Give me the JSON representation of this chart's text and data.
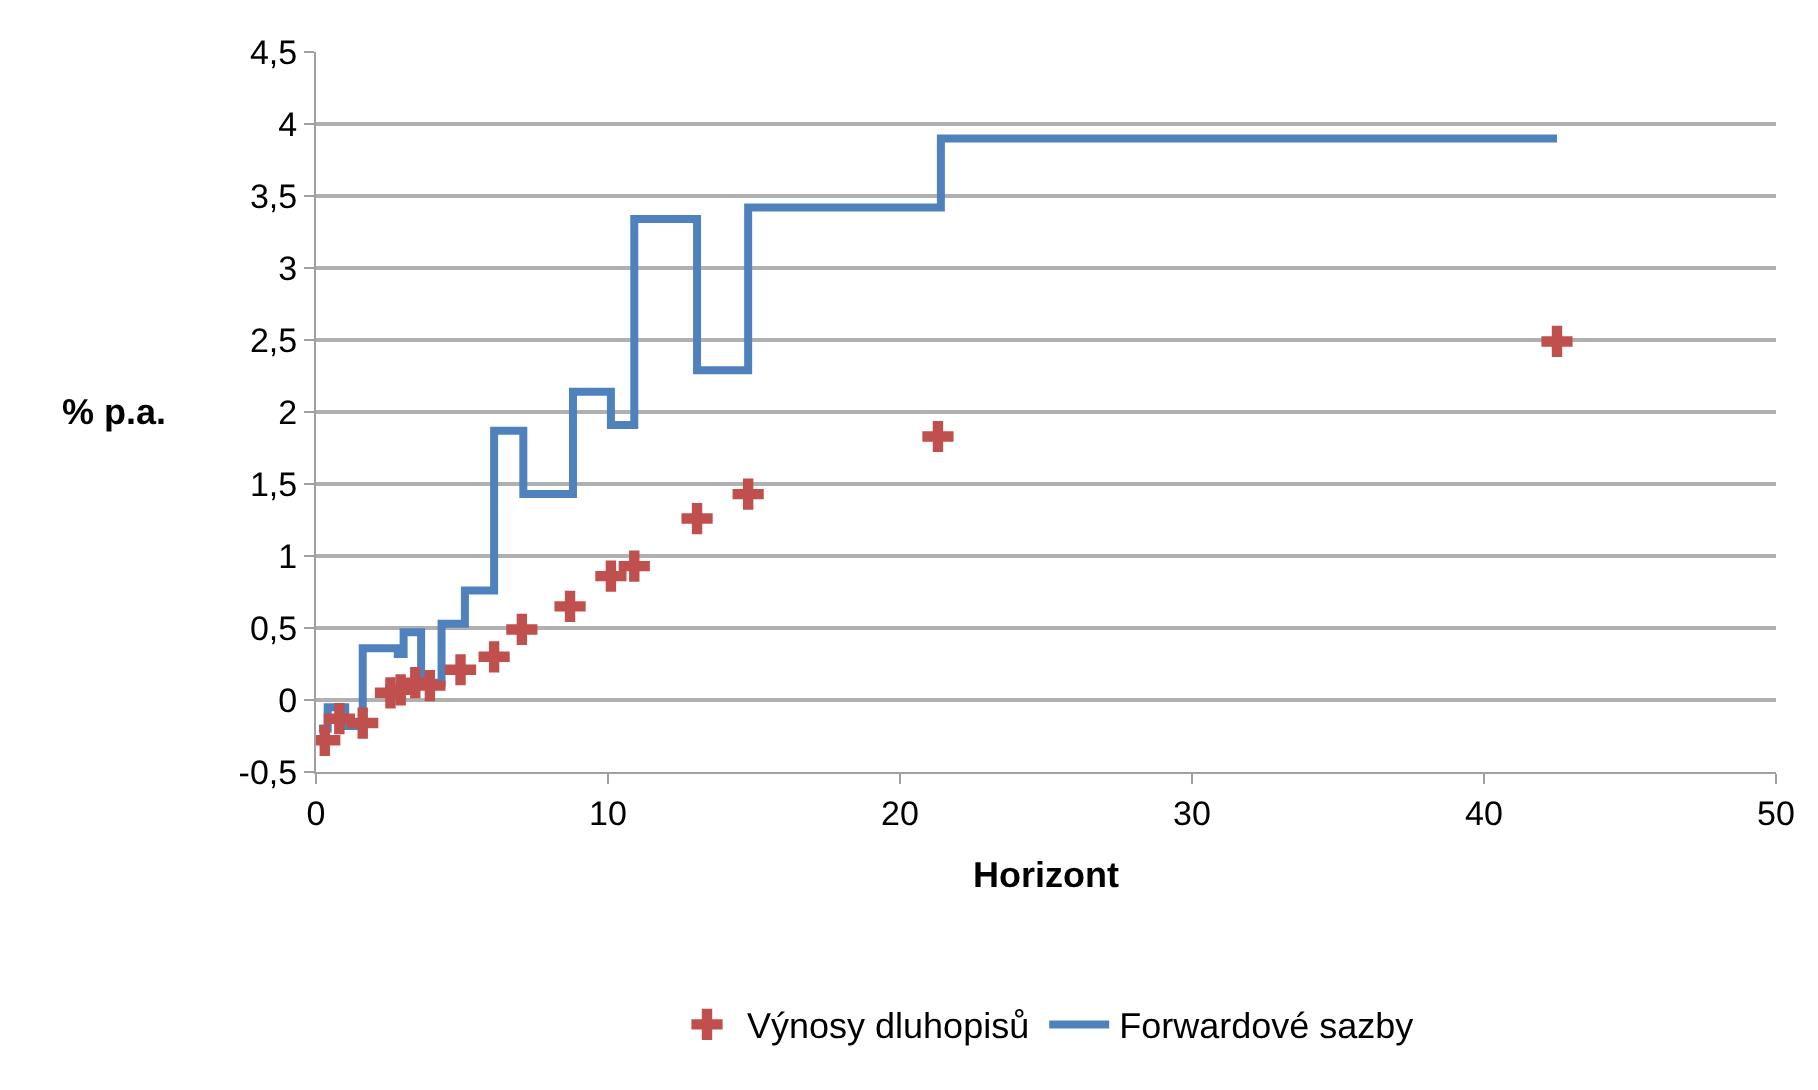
{
  "chart_data": {
    "type": "scatter",
    "xlabel": "Horizont",
    "ylabel": "% p.a.",
    "xlim": [
      0,
      50
    ],
    "xticks": [
      0,
      10,
      20,
      30,
      40,
      50
    ],
    "ylim": [
      -0.5,
      4.5
    ],
    "yticks": [
      {
        "value": -0.5,
        "label": "-0,5"
      },
      0,
      {
        "value": 0.5,
        "label": "0,5"
      },
      1,
      {
        "value": 1.5,
        "label": "1,5"
      },
      2,
      {
        "value": 2.5,
        "label": "2,5"
      },
      3,
      {
        "value": 3.5,
        "label": "3,5"
      },
      4,
      {
        "value": 4.5,
        "label": "4,5"
      }
    ],
    "grid": "y",
    "legend": "bottom",
    "series": [
      {
        "name": "Výnosy dluhopisů",
        "marker": "cross",
        "color": "#c0504d",
        "x": [
          0.3,
          0.8,
          1.6,
          2.55,
          2.9,
          3.4,
          3.9,
          4.95,
          6.1,
          7.05,
          8.7,
          10.1,
          10.9,
          13.05,
          14.8,
          21.3,
          42.5
        ],
        "values": [
          -0.28,
          -0.13,
          -0.16,
          0.05,
          0.07,
          0.12,
          0.1,
          0.21,
          0.3,
          0.49,
          0.65,
          0.86,
          0.93,
          1.26,
          1.43,
          1.83,
          2.49
        ]
      },
      {
        "name": "Forwardové sazby",
        "type": "step",
        "marker": "none",
        "line_style": "solid",
        "color": "#4f81bd",
        "x": [
          0.1,
          0.4,
          1.0,
          1.6,
          2.8,
          3.0,
          3.6,
          4.3,
          5.1,
          6.1,
          7.1,
          8.8,
          10.1,
          10.9,
          13.05,
          14.8,
          21.4,
          42.5
        ],
        "values": [
          -0.2,
          -0.05,
          -0.18,
          0.36,
          0.32,
          0.47,
          0.12,
          0.53,
          0.76,
          1.87,
          1.43,
          2.14,
          1.91,
          3.34,
          2.29,
          3.42,
          3.9,
          3.9
        ]
      }
    ]
  }
}
